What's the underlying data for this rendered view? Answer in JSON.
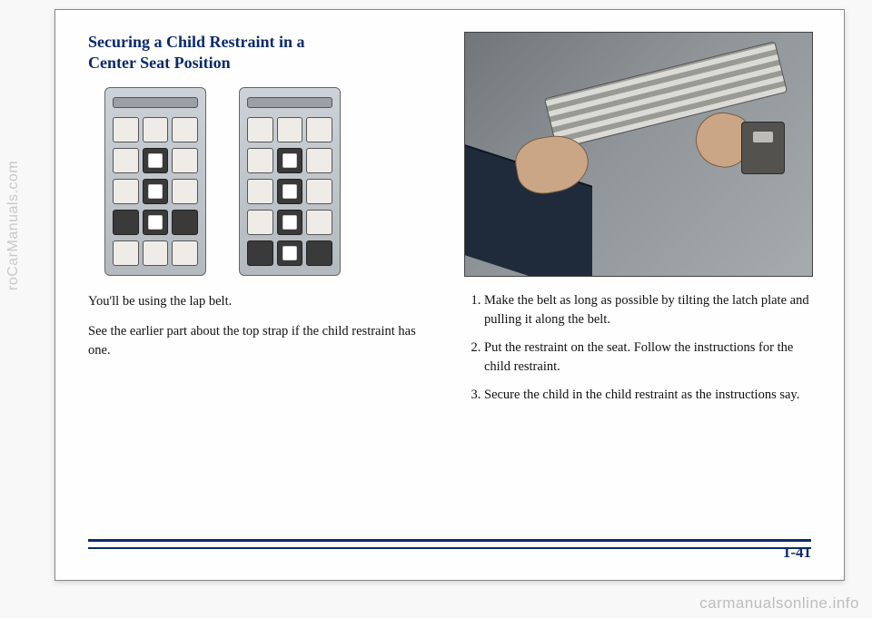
{
  "title_line1": "Securing a Child Restraint in a",
  "title_line2": "Center Seat Position",
  "left": {
    "p1": "You'll be using the lap belt.",
    "p2": "See the earlier part about the top strap if the child restraint has one."
  },
  "right": {
    "steps": [
      "Make the belt as long as possible by tilting the latch plate and pulling it along the belt.",
      "Put the restraint on the seat. Follow the instructions for the child restraint.",
      "Secure the child in the child restraint as the instructions say."
    ]
  },
  "page_number": "1-41",
  "watermark_left": "roCarManuals.com",
  "watermark_bottom": "carmanualsonline.info",
  "van_a": {
    "rows": [
      {
        "seats": [
          false,
          false,
          false
        ],
        "cr": [
          false,
          false,
          false
        ]
      },
      {
        "seats": [
          false,
          true,
          false
        ],
        "cr": [
          false,
          true,
          false
        ]
      },
      {
        "seats": [
          false,
          true,
          false
        ],
        "cr": [
          false,
          true,
          false
        ]
      },
      {
        "seats": [
          true,
          true,
          true
        ],
        "cr": [
          false,
          true,
          false
        ]
      },
      {
        "seats": [
          false,
          false,
          false
        ],
        "cr": [
          false,
          false,
          false
        ]
      }
    ]
  },
  "van_b": {
    "rows": [
      {
        "seats": [
          false,
          false,
          false
        ],
        "cr": [
          false,
          false,
          false
        ]
      },
      {
        "seats": [
          false,
          true,
          false
        ],
        "cr": [
          false,
          true,
          false
        ]
      },
      {
        "seats": [
          false,
          true,
          false
        ],
        "cr": [
          false,
          true,
          false
        ]
      },
      {
        "seats": [
          false,
          true,
          false
        ],
        "cr": [
          false,
          true,
          false
        ]
      },
      {
        "seats": [
          true,
          true,
          true
        ],
        "cr": [
          false,
          true,
          false
        ]
      }
    ]
  },
  "colors": {
    "heading": "#0b2a6b",
    "rule": "#0b2a6b",
    "text": "#111111"
  }
}
